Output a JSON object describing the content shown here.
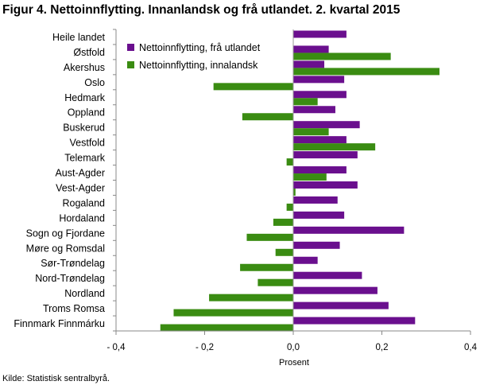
{
  "chart_data": {
    "type": "bar",
    "orientation": "horizontal",
    "title": "Figur 4. Nettoinnflytting. Innanlandsk og frå utlandet. 2. kvartal 2015",
    "xlabel": "Prosent",
    "xlim": [
      -0.4,
      0.4
    ],
    "xticks": [
      -0.4,
      -0.2,
      0.0,
      0.2,
      0.4
    ],
    "xtick_labels": [
      "- 0,4",
      "- 0,2",
      "0,0",
      "0,2",
      "0,4"
    ],
    "grid": false,
    "legend_position": "top-left",
    "categories": [
      "Heile landet",
      "Østfold",
      "Akershus",
      "Oslo",
      "Hedmark",
      "Oppland",
      "Buskerud",
      "Vestfold",
      "Telemark",
      "Aust-Agder",
      "Vest-Agder",
      "Rogaland",
      "Hordaland",
      "Sogn og Fjordane",
      "Møre og Romsdal",
      "Sør-Trøndelag",
      "Nord-Trøndelag",
      "Nordland",
      "Troms Romsa",
      "Finnmark Finnmárku"
    ],
    "series": [
      {
        "name": "Nettoinnflytting, frå utlandet",
        "color": "#6a0f8e",
        "values": [
          0.12,
          0.08,
          0.07,
          0.115,
          0.12,
          0.095,
          0.15,
          0.12,
          0.145,
          0.12,
          0.145,
          0.1,
          0.115,
          0.25,
          0.105,
          0.055,
          0.155,
          0.19,
          0.215,
          0.275
        ]
      },
      {
        "name": "Nettoinnflytting, innalandsk",
        "color": "#3a8c12",
        "values": [
          0,
          0.22,
          0.33,
          -0.18,
          0.055,
          -0.115,
          0.08,
          0.185,
          -0.015,
          0.075,
          0.005,
          -0.015,
          -0.045,
          -0.105,
          -0.04,
          -0.12,
          -0.08,
          -0.19,
          -0.27,
          -0.3
        ]
      }
    ]
  },
  "source": "Kilde: Statistisk sentralbyrå."
}
